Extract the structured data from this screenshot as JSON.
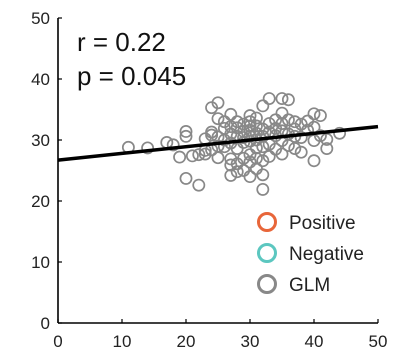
{
  "chart_data": {
    "type": "scatter",
    "xlim": [
      0,
      50
    ],
    "ylim": [
      0,
      50
    ],
    "x_ticks": [
      "0",
      "10",
      "20",
      "30",
      "40",
      "50"
    ],
    "y_ticks": [
      "0",
      "10",
      "20",
      "30",
      "40",
      "50"
    ],
    "grid": false,
    "legend_position": "bottom-right",
    "annotations": {
      "r_text": "r = 0.22",
      "p_text": "p = 0.045"
    },
    "fit_line": {
      "color": "#000000",
      "start": [
        0,
        26.7
      ],
      "end": [
        50,
        32.2
      ]
    },
    "legend": [
      {
        "label": "Positive",
        "color": "#E8663A"
      },
      {
        "label": "Negative",
        "color": "#5CC7C0"
      },
      {
        "label": "GLM",
        "color": "#888888"
      }
    ],
    "series": [
      {
        "color": "#888888",
        "points": [
          [
            11,
            28.8
          ],
          [
            14,
            28.7
          ],
          [
            17,
            29.6
          ],
          [
            18,
            29.2
          ],
          [
            19,
            27.2
          ],
          [
            20,
            31.4
          ],
          [
            20,
            30.6
          ],
          [
            20,
            23.7
          ],
          [
            21,
            27.4
          ],
          [
            22,
            27.6
          ],
          [
            22,
            22.6
          ],
          [
            23,
            28.3
          ],
          [
            23,
            27.7
          ],
          [
            23,
            30.2
          ],
          [
            24,
            35.3
          ],
          [
            24,
            31.3
          ],
          [
            24,
            28.4
          ],
          [
            24,
            30.8
          ],
          [
            25,
            36.1
          ],
          [
            25,
            33.5
          ],
          [
            25,
            30.5
          ],
          [
            25,
            29.0
          ],
          [
            25,
            27.1
          ],
          [
            26,
            33.0
          ],
          [
            26,
            31.9
          ],
          [
            26,
            30.0
          ],
          [
            26,
            28.9
          ],
          [
            27,
            34.2
          ],
          [
            27,
            32.2
          ],
          [
            27,
            31.0
          ],
          [
            27,
            29.5
          ],
          [
            27,
            26.9
          ],
          [
            27,
            25.9
          ],
          [
            27,
            24.2
          ],
          [
            28,
            33.0
          ],
          [
            28,
            32.0
          ],
          [
            28,
            30.6
          ],
          [
            28,
            28.6
          ],
          [
            28,
            26.1
          ],
          [
            28,
            24.8
          ],
          [
            29,
            32.6
          ],
          [
            29,
            31.4
          ],
          [
            29,
            30.4
          ],
          [
            29,
            29.6
          ],
          [
            29,
            27.0
          ],
          [
            29,
            25.0
          ],
          [
            30,
            34.0
          ],
          [
            30,
            33.0
          ],
          [
            30,
            32.3
          ],
          [
            30,
            31.6
          ],
          [
            30,
            30.6
          ],
          [
            30,
            29.8
          ],
          [
            30,
            27.6
          ],
          [
            30,
            26.4
          ],
          [
            30,
            24.0
          ],
          [
            31,
            33.6
          ],
          [
            31,
            32.3
          ],
          [
            31,
            31.1
          ],
          [
            31,
            30.0
          ],
          [
            31,
            28.7
          ],
          [
            31,
            27.0
          ],
          [
            31,
            25.3
          ],
          [
            32,
            35.6
          ],
          [
            32,
            31.8
          ],
          [
            32,
            30.6
          ],
          [
            32,
            28.9
          ],
          [
            32,
            26.6
          ],
          [
            32,
            24.3
          ],
          [
            32,
            21.9
          ],
          [
            33,
            36.8
          ],
          [
            33,
            32.7
          ],
          [
            33,
            31.3
          ],
          [
            33,
            29.3
          ],
          [
            33,
            27.3
          ],
          [
            34,
            33.3
          ],
          [
            34,
            31.9
          ],
          [
            34,
            30.7
          ],
          [
            34,
            28.5
          ],
          [
            35,
            36.8
          ],
          [
            35,
            34.4
          ],
          [
            35,
            32.7
          ],
          [
            35,
            31.5
          ],
          [
            35,
            29.9
          ],
          [
            35,
            27.7
          ],
          [
            36,
            36.6
          ],
          [
            36,
            33.3
          ],
          [
            36,
            31.0
          ],
          [
            36,
            29.1
          ],
          [
            37,
            33.0
          ],
          [
            37,
            31.8
          ],
          [
            37,
            30.6
          ],
          [
            37,
            28.6
          ],
          [
            38,
            32.6
          ],
          [
            38,
            30.4
          ],
          [
            38,
            28.0
          ],
          [
            39,
            33.1
          ],
          [
            39,
            31.6
          ],
          [
            40,
            34.3
          ],
          [
            40,
            32.1
          ],
          [
            40,
            29.9
          ],
          [
            40,
            26.6
          ],
          [
            41,
            34.0
          ],
          [
            41,
            30.7
          ],
          [
            42,
            30.1
          ],
          [
            42,
            28.6
          ],
          [
            44,
            31.1
          ]
        ]
      }
    ]
  }
}
